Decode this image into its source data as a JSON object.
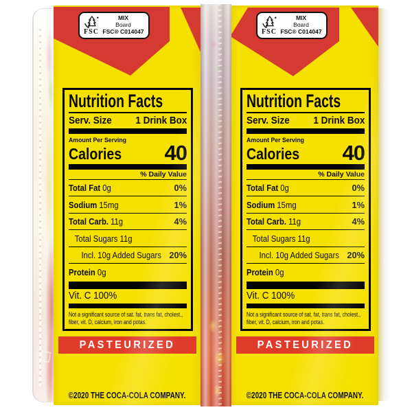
{
  "colors": {
    "box_yellow": "#F6E000",
    "brand_red": "#D43A31",
    "banner_red": "#E03A29",
    "label_ink": "#0A0A00",
    "background": "#FFFFFF"
  },
  "fsc": {
    "brand": "FSC",
    "mix": "MIX",
    "board": "Board",
    "cert": "FSC® C014047"
  },
  "nutrition": {
    "title": "Nutrition Facts",
    "serving_label": "Serv. Size",
    "serving_value": "1 Drink Box",
    "amount_per_serving": "Amount Per Serving",
    "calories_label": "Calories",
    "calories_value": "40",
    "daily_value_header": "% Daily Value",
    "rows": [
      {
        "label": "Total Fat",
        "amount": "0g",
        "dv": "0%",
        "indent": 0,
        "bold": true
      },
      {
        "label": "Sodium",
        "amount": "15mg",
        "dv": "1%",
        "indent": 0,
        "bold": true
      },
      {
        "label": "Total Carb.",
        "amount": "11g",
        "dv": "4%",
        "indent": 0,
        "bold": true
      },
      {
        "label": "Total Sugars",
        "amount": "11g",
        "dv": "",
        "indent": 1,
        "bold": false
      },
      {
        "label": "Incl. 10g Added Sugars",
        "amount": "",
        "dv": "20%",
        "indent": 2,
        "bold": false
      },
      {
        "label": "Protein",
        "amount": "0g",
        "dv": "",
        "indent": 0,
        "bold": true
      }
    ],
    "vitamin_c": "Vit. C 100%",
    "footnote_parts": [
      "Not a significant source of sat. fat, ",
      "trans",
      " fat, cholest., fiber, vit. D, calcium, iron and potas."
    ]
  },
  "banner": {
    "text": "PASTEURIZED"
  },
  "copyright": "©2020 THE COCA-COLA COMPANY."
}
